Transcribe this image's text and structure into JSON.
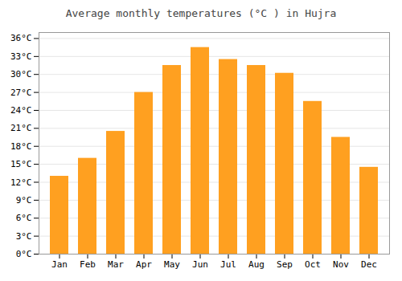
{
  "chart_data": {
    "type": "bar",
    "title": "Average monthly temperatures (°C ) in Hujra",
    "categories": [
      "Jan",
      "Feb",
      "Mar",
      "Apr",
      "May",
      "Jun",
      "Jul",
      "Aug",
      "Sep",
      "Oct",
      "Nov",
      "Dec"
    ],
    "values": [
      13,
      16,
      20.5,
      27,
      31.5,
      34.5,
      32.5,
      31.5,
      30.2,
      25.5,
      19.5,
      14.5
    ],
    "color": "#FFA020",
    "ylim": [
      0,
      37
    ],
    "yticks": [
      {
        "value": 0,
        "label": "0°C"
      },
      {
        "value": 3,
        "label": "3°C"
      },
      {
        "value": 6,
        "label": "6°C"
      },
      {
        "value": 9,
        "label": "9°C"
      },
      {
        "value": 12,
        "label": "12°C"
      },
      {
        "value": 15,
        "label": "15°C"
      },
      {
        "value": 18,
        "label": "18°C"
      },
      {
        "value": 21,
        "label": "21°C"
      },
      {
        "value": 24,
        "label": "24°C"
      },
      {
        "value": 27,
        "label": "27°C"
      },
      {
        "value": 30,
        "label": "30°C"
      },
      {
        "value": 33,
        "label": "33°C"
      },
      {
        "value": 36,
        "label": "36°C"
      }
    ],
    "grid": true
  }
}
